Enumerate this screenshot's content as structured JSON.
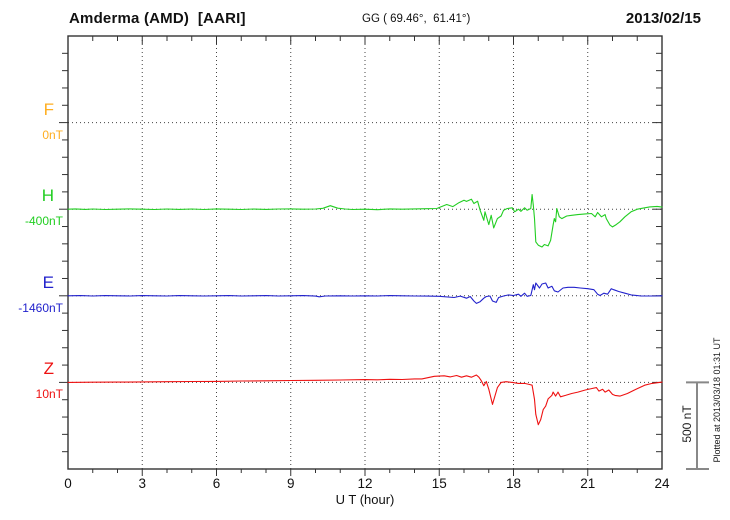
{
  "chart_data": {
    "type": "line",
    "title": "Amderma (AMD)  [AARI]",
    "subtitle": "GG ( 69.46°,  61.41°)",
    "date": "2013/02/15",
    "xlabel": "U T (hour)",
    "x_range": [
      0,
      24
    ],
    "x_ticks": [
      0,
      3,
      6,
      9,
      12,
      15,
      18,
      21,
      24
    ],
    "x_minor_step_hours": 1,
    "y_minor_division_nT": 100,
    "channel_offset_nT": 500,
    "grid": "dotted vertical lines at 3h intervals, dotted horizontal baseline per channel",
    "legend_position": "left margin, one colored label per channel baseline",
    "scale_bar": {
      "label": "500 nT",
      "span_nT": 500
    },
    "plotted_note": "Plotted at 2013/03/18 01:31 UT",
    "series": [
      {
        "name": "F",
        "baseline_label": "0nT",
        "color": "#FFAE21",
        "points": []
      },
      {
        "name": "H",
        "baseline_label": "-400nT",
        "color": "#22CE22",
        "points": [
          [
            0,
            0
          ],
          [
            0.3,
            2
          ],
          [
            0.7,
            -1
          ],
          [
            1,
            1
          ],
          [
            1.5,
            -2
          ],
          [
            2,
            0
          ],
          [
            2.5,
            2
          ],
          [
            3,
            0
          ],
          [
            3.5,
            -2
          ],
          [
            4,
            1
          ],
          [
            4.5,
            -1
          ],
          [
            5,
            1
          ],
          [
            5.5,
            -2
          ],
          [
            6,
            2
          ],
          [
            6.5,
            0
          ],
          [
            7,
            -2
          ],
          [
            7.5,
            1
          ],
          [
            8,
            -1
          ],
          [
            8.5,
            1
          ],
          [
            9,
            2
          ],
          [
            9.5,
            0
          ],
          [
            10,
            1
          ],
          [
            10.3,
            5
          ],
          [
            10.6,
            20
          ],
          [
            10.9,
            6
          ],
          [
            11.2,
            1
          ],
          [
            11.5,
            -2
          ],
          [
            12,
            0
          ],
          [
            12.5,
            -3
          ],
          [
            13,
            2
          ],
          [
            13.5,
            0
          ],
          [
            14,
            2
          ],
          [
            14.5,
            3
          ],
          [
            14.9,
            4
          ],
          [
            15.3,
            27
          ],
          [
            15.55,
            15
          ],
          [
            15.8,
            38
          ],
          [
            16,
            52
          ],
          [
            16.1,
            45
          ],
          [
            16.3,
            58
          ],
          [
            16.4,
            33
          ],
          [
            16.55,
            46
          ],
          [
            16.65,
            -6
          ],
          [
            16.8,
            -64
          ],
          [
            16.85,
            -15
          ],
          [
            17,
            -89
          ],
          [
            17.1,
            -35
          ],
          [
            17.2,
            -108
          ],
          [
            17.35,
            -54
          ],
          [
            17.5,
            -39
          ],
          [
            17.6,
            -6
          ],
          [
            17.75,
            4
          ],
          [
            17.95,
            8
          ],
          [
            18.05,
            -15
          ],
          [
            18.2,
            0
          ],
          [
            18.3,
            -12
          ],
          [
            18.45,
            8
          ],
          [
            18.55,
            -6
          ],
          [
            18.7,
            4
          ],
          [
            18.75,
            85
          ],
          [
            18.8,
            23
          ],
          [
            18.85,
            -54
          ],
          [
            18.9,
            -189
          ],
          [
            19,
            -208
          ],
          [
            19.15,
            -218
          ],
          [
            19.25,
            -204
          ],
          [
            19.4,
            -212
          ],
          [
            19.5,
            -180
          ],
          [
            19.6,
            -92
          ],
          [
            19.65,
            -54
          ],
          [
            19.7,
            -73
          ],
          [
            19.75,
            4
          ],
          [
            19.85,
            -44
          ],
          [
            19.95,
            -54
          ],
          [
            20.15,
            -39
          ],
          [
            20.35,
            -35
          ],
          [
            20.6,
            -31
          ],
          [
            20.9,
            -27
          ],
          [
            21.15,
            -25
          ],
          [
            21.3,
            -44
          ],
          [
            21.4,
            -19
          ],
          [
            21.55,
            -44
          ],
          [
            21.7,
            -31
          ],
          [
            21.75,
            -54
          ],
          [
            21.9,
            -92
          ],
          [
            22,
            -102
          ],
          [
            22.15,
            -89
          ],
          [
            22.3,
            -73
          ],
          [
            22.5,
            -44
          ],
          [
            22.75,
            -15
          ],
          [
            23,
            0
          ],
          [
            23.3,
            8
          ],
          [
            23.5,
            13
          ],
          [
            23.8,
            16
          ],
          [
            24,
            12
          ]
        ]
      },
      {
        "name": "E",
        "baseline_label": "-1460nT",
        "color": "#2222CC",
        "points": [
          [
            0,
            0
          ],
          [
            0.5,
            1
          ],
          [
            1,
            -1
          ],
          [
            1.5,
            1
          ],
          [
            2,
            0
          ],
          [
            2.5,
            -1
          ],
          [
            3,
            1
          ],
          [
            3.5,
            0
          ],
          [
            4,
            -1
          ],
          [
            4.5,
            1
          ],
          [
            5,
            0
          ],
          [
            5.5,
            -1
          ],
          [
            6,
            0
          ],
          [
            6.5,
            1
          ],
          [
            7,
            -1
          ],
          [
            7.5,
            0
          ],
          [
            8,
            1
          ],
          [
            8.5,
            -1
          ],
          [
            9,
            0
          ],
          [
            9.5,
            1
          ],
          [
            10,
            -2
          ],
          [
            10.15,
            -6
          ],
          [
            10.4,
            -1
          ],
          [
            11,
            0
          ],
          [
            11.5,
            -1
          ],
          [
            12,
            0
          ],
          [
            12.5,
            -1
          ],
          [
            13,
            1
          ],
          [
            13.5,
            0
          ],
          [
            14,
            -1
          ],
          [
            14.5,
            -2
          ],
          [
            15,
            -3
          ],
          [
            15.6,
            -10
          ],
          [
            15.85,
            -2
          ],
          [
            16.1,
            -14
          ],
          [
            16.25,
            -4
          ],
          [
            16.4,
            -30
          ],
          [
            16.5,
            -44
          ],
          [
            16.65,
            -34
          ],
          [
            16.8,
            -14
          ],
          [
            16.9,
            -4
          ],
          [
            17.05,
            -1
          ],
          [
            17.15,
            -30
          ],
          [
            17.3,
            -38
          ],
          [
            17.4,
            -10
          ],
          [
            17.6,
            -1
          ],
          [
            17.8,
            5
          ],
          [
            18,
            2
          ],
          [
            18.2,
            9
          ],
          [
            18.3,
            -3
          ],
          [
            18.45,
            15
          ],
          [
            18.55,
            -3
          ],
          [
            18.7,
            2
          ],
          [
            18.8,
            64
          ],
          [
            18.85,
            35
          ],
          [
            18.9,
            74
          ],
          [
            19.05,
            45
          ],
          [
            19.15,
            68
          ],
          [
            19.3,
            74
          ],
          [
            19.4,
            45
          ],
          [
            19.55,
            55
          ],
          [
            19.65,
            29
          ],
          [
            19.8,
            22
          ],
          [
            20,
            45
          ],
          [
            20.2,
            49
          ],
          [
            20.45,
            49
          ],
          [
            20.7,
            45
          ],
          [
            21,
            41
          ],
          [
            21.25,
            35
          ],
          [
            21.4,
            9
          ],
          [
            21.5,
            2
          ],
          [
            21.65,
            15
          ],
          [
            21.8,
            9
          ],
          [
            21.95,
            41
          ],
          [
            22.05,
            35
          ],
          [
            22.25,
            25
          ],
          [
            22.5,
            15
          ],
          [
            22.75,
            5
          ],
          [
            23.15,
            -1
          ],
          [
            23.7,
            -1
          ],
          [
            24,
            0
          ]
        ]
      },
      {
        "name": "Z",
        "baseline_label": "10nT",
        "color": "#EE1111",
        "points": [
          [
            0,
            0
          ],
          [
            1,
            1
          ],
          [
            2,
            2
          ],
          [
            3,
            3
          ],
          [
            4,
            4
          ],
          [
            5,
            5
          ],
          [
            6,
            6
          ],
          [
            7,
            8
          ],
          [
            8,
            9
          ],
          [
            9,
            11
          ],
          [
            10,
            12
          ],
          [
            11,
            14
          ],
          [
            12,
            16
          ],
          [
            12.5,
            15
          ],
          [
            13,
            18
          ],
          [
            13.5,
            17
          ],
          [
            14,
            20
          ],
          [
            14.3,
            20
          ],
          [
            14.8,
            35
          ],
          [
            15.2,
            38
          ],
          [
            15.45,
            32
          ],
          [
            15.7,
            40
          ],
          [
            15.9,
            30
          ],
          [
            16.1,
            38
          ],
          [
            16.3,
            30
          ],
          [
            16.5,
            43
          ],
          [
            16.6,
            30
          ],
          [
            16.7,
            10
          ],
          [
            16.8,
            -19
          ],
          [
            16.9,
            5
          ],
          [
            17,
            -40
          ],
          [
            17.15,
            -127
          ],
          [
            17.25,
            -79
          ],
          [
            17.35,
            -30
          ],
          [
            17.5,
            0
          ],
          [
            17.7,
            4
          ],
          [
            17.95,
            0
          ],
          [
            18.2,
            -6
          ],
          [
            18.45,
            -6
          ],
          [
            18.65,
            -12
          ],
          [
            18.75,
            -16
          ],
          [
            18.85,
            -98
          ],
          [
            18.9,
            -185
          ],
          [
            19,
            -244
          ],
          [
            19.1,
            -215
          ],
          [
            19.2,
            -157
          ],
          [
            19.3,
            -137
          ],
          [
            19.4,
            -95
          ],
          [
            19.55,
            -75
          ],
          [
            19.6,
            -56
          ],
          [
            19.7,
            -79
          ],
          [
            19.8,
            -56
          ],
          [
            19.9,
            -83
          ],
          [
            20.1,
            -75
          ],
          [
            20.35,
            -64
          ],
          [
            20.6,
            -56
          ],
          [
            20.9,
            -44
          ],
          [
            21.15,
            -36
          ],
          [
            21.35,
            -30
          ],
          [
            21.45,
            -50
          ],
          [
            21.6,
            -40
          ],
          [
            21.7,
            -56
          ],
          [
            21.85,
            -44
          ],
          [
            22,
            -69
          ],
          [
            22.1,
            -75
          ],
          [
            22.3,
            -79
          ],
          [
            22.6,
            -64
          ],
          [
            22.95,
            -40
          ],
          [
            23.3,
            -16
          ],
          [
            23.6,
            -6
          ],
          [
            23.9,
            0
          ],
          [
            24,
            2
          ]
        ]
      }
    ],
    "colors": {
      "frame": "#333333",
      "dotted_lines": "#444444",
      "scale_bar": "#888888",
      "text": "#111111"
    }
  }
}
